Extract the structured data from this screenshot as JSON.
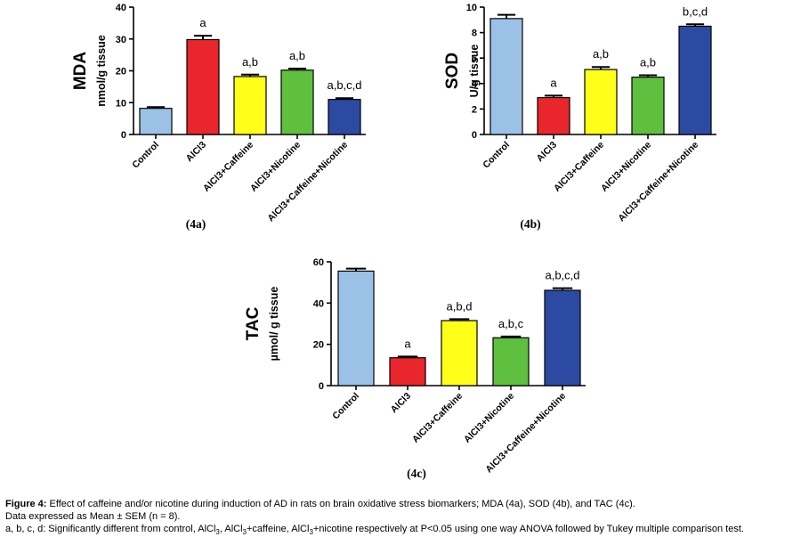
{
  "chart_data": [
    {
      "type": "bar",
      "panel_label": "(4a)",
      "metric": "MDA",
      "unit": "nmol/g tissue",
      "categories": [
        "Control",
        "AlCl3",
        "AlCl3+Caffeine",
        "AlCl3+Nicotine",
        "AlCl3+Caffeine+Nicotine"
      ],
      "values": [
        8.2,
        29.8,
        18.2,
        20.2,
        11.0
      ],
      "errors": [
        0.4,
        1.2,
        0.6,
        0.5,
        0.4
      ],
      "significance": [
        "",
        "a",
        "a,b",
        "a,b",
        "a,b,c,d"
      ],
      "colors": [
        "#9bc2e6",
        "#e8262c",
        "#ffff1a",
        "#5fbf3f",
        "#2d4aa3"
      ],
      "ylim": [
        0,
        40
      ],
      "yticks": [
        0,
        10,
        20,
        30,
        40
      ]
    },
    {
      "type": "bar",
      "panel_label": "(4b)",
      "metric": "SOD",
      "unit": "U/g tissue",
      "categories": [
        "Control",
        "AlCl3",
        "AlCl3+Caffeine",
        "AlCl3+Nicotine",
        "AlCl3+Caffeine+Nicotine"
      ],
      "values": [
        9.1,
        2.9,
        5.1,
        4.5,
        8.5
      ],
      "errors": [
        0.3,
        0.15,
        0.2,
        0.15,
        0.15
      ],
      "significance": [
        "",
        "a",
        "a,b",
        "a,b",
        "b,c,d"
      ],
      "colors": [
        "#9bc2e6",
        "#e8262c",
        "#ffff1a",
        "#5fbf3f",
        "#2d4aa3"
      ],
      "ylim": [
        0,
        10
      ],
      "yticks": [
        0,
        2,
        4,
        6,
        8,
        10
      ]
    },
    {
      "type": "bar",
      "panel_label": "(4c)",
      "metric": "TAC",
      "unit": "µmol/ g tissue",
      "categories": [
        "Control",
        "AlCl3",
        "AlCl3+Caffeine",
        "AlCl3+Nicotine",
        "AlCl3+Caffeine+Nicotine"
      ],
      "values": [
        55.5,
        13.5,
        31.5,
        23.2,
        46.2
      ],
      "errors": [
        1.2,
        0.6,
        0.7,
        0.6,
        1.0
      ],
      "significance": [
        "",
        "a",
        "a,b,d",
        "a,b,c",
        "a,b,c,d"
      ],
      "colors": [
        "#9bc2e6",
        "#e8262c",
        "#ffff1a",
        "#5fbf3f",
        "#2d4aa3"
      ],
      "ylim": [
        0,
        60
      ],
      "yticks": [
        0,
        20,
        40,
        60
      ]
    }
  ],
  "caption": {
    "figure_label": "Figure 4:",
    "line1": "Effect of caffeine and/or nicotine during induction of AD in rats on brain oxidative stress biomarkers; MDA (4a), SOD (4b), and TAC (4c).",
    "line2": "Data expressed as Mean ± SEM (n = 8).",
    "line3_part1": "a, b, c, d: Significantly different from control, AlCl",
    "sub_3": "3",
    "line3_part2": ", AlCl",
    "line3_part3": "+caffeine, AlCl",
    "line3_part4": "+nicotine respectively at P<0.05 using one way ANOVA followed by Tukey multiple comparison test."
  }
}
